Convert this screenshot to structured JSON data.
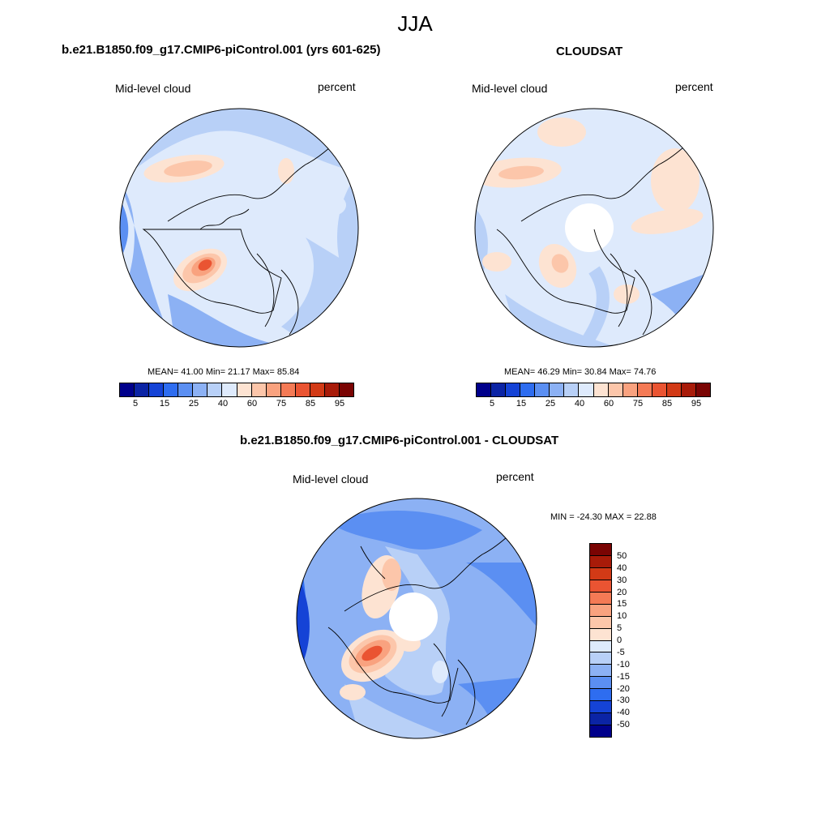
{
  "figure_title": "JJA",
  "panels": [
    {
      "title": "b.e21.B1850.f09_g17.CMIP6-piControl.001 (yrs 601-625)",
      "left_label": "Mid-level cloud",
      "right_label": "percent",
      "stats": "MEAN=  41.00  Min=  21.17  Max=  85.84",
      "mean": 41.0,
      "min": 21.17,
      "max": 85.84
    },
    {
      "title": "CLOUDSAT",
      "left_label": "Mid-level cloud",
      "right_label": "percent",
      "stats": "MEAN=  46.29  Min=  30.84  Max=  74.76",
      "mean": 46.29,
      "min": 30.84,
      "max": 74.76
    },
    {
      "title": "b.e21.B1850.f09_g17.CMIP6-piControl.001 - CLOUDSAT",
      "left_label": "Mid-level cloud",
      "right_label": "percent",
      "stats": "MIN = -24.30 MAX =  22.88",
      "min": -24.3,
      "max": 22.88
    }
  ],
  "colorbar_abs": {
    "tick_labels": [
      "5",
      "15",
      "25",
      "40",
      "60",
      "75",
      "85",
      "95"
    ],
    "colors": [
      "#00008b",
      "#0b24a5",
      "#1543d6",
      "#2e6df0",
      "#5b8ff2",
      "#8cb1f4",
      "#b8d0f7",
      "#deeafc",
      "#fde3d2",
      "#fcc6aa",
      "#f9a27f",
      "#f47a55",
      "#ea5432",
      "#d23a16",
      "#a81b09",
      "#7a0403"
    ]
  },
  "colorbar_diff": {
    "tick_labels": [
      "50",
      "40",
      "30",
      "20",
      "15",
      "10",
      "5",
      "0",
      "-5",
      "-10",
      "-15",
      "-20",
      "-30",
      "-40",
      "-50"
    ],
    "colors": [
      "#7a0403",
      "#a81b09",
      "#d23a16",
      "#ea5432",
      "#f47a55",
      "#f9a27f",
      "#fcc6aa",
      "#fde3d2",
      "#deeafc",
      "#b8d0f7",
      "#8cb1f4",
      "#5b8ff2",
      "#2e6df0",
      "#1543d6",
      "#0b24a5",
      "#00008b"
    ]
  },
  "chart_data": [
    {
      "type": "heatmap",
      "title": "b.e21.B1850.f09_g17.CMIP6-piControl.001 (yrs 601-625)",
      "variable": "Mid-level cloud",
      "units": "percent",
      "season": "JJA",
      "mean": 41.0,
      "min": 21.17,
      "max": 85.84
    },
    {
      "type": "heatmap",
      "title": "CLOUDSAT",
      "variable": "Mid-level cloud",
      "units": "percent",
      "season": "JJA",
      "mean": 46.29,
      "min": 30.84,
      "max": 74.76
    },
    {
      "type": "heatmap",
      "title": "b.e21.B1850.f09_g17.CMIP6-piControl.001 - CLOUDSAT",
      "variable": "Mid-level cloud",
      "units": "percent",
      "season": "JJA",
      "min": -24.3,
      "max": 22.88
    }
  ]
}
